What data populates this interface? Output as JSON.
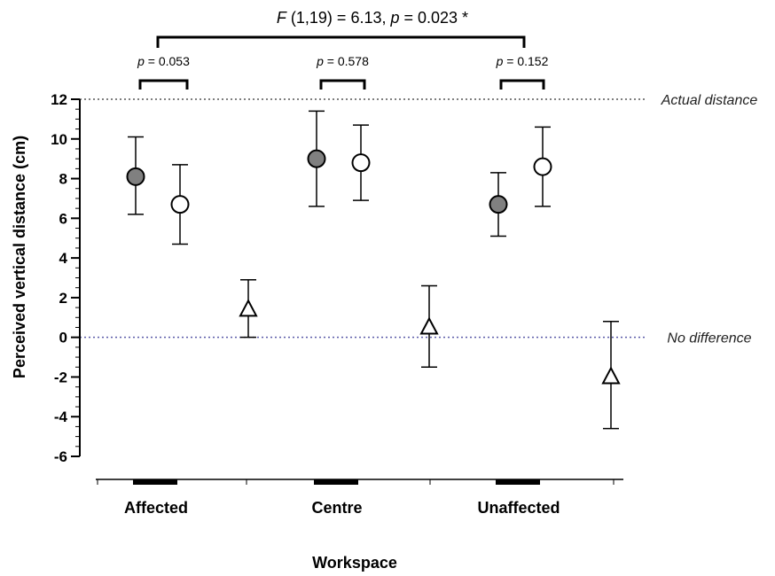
{
  "chart_data": {
    "type": "scatter",
    "xlabel": "Workspace",
    "ylabel": "Perceived vertical distance (cm)",
    "ylim": [
      -6,
      12
    ],
    "yticks": [
      "12",
      "10",
      "8",
      "6",
      "4",
      "2",
      "0",
      "-2",
      "-4",
      "-6"
    ],
    "categories": [
      "Affected",
      "Centre",
      "Unaffected"
    ],
    "series": [
      {
        "marker": "filled-circle",
        "color": "#808080",
        "values": [
          8.1,
          9.0,
          6.7
        ],
        "ci_lower": [
          6.2,
          6.6,
          5.1
        ],
        "ci_upper": [
          10.1,
          11.4,
          8.3
        ]
      },
      {
        "marker": "open-circle",
        "color": "#ffffff",
        "values": [
          6.7,
          8.8,
          8.6
        ],
        "ci_lower": [
          4.7,
          6.9,
          6.6
        ],
        "ci_upper": [
          8.7,
          10.7,
          10.6
        ]
      },
      {
        "marker": "open-triangle",
        "color": "#ffffff",
        "values": [
          1.4,
          0.5,
          -2.0
        ],
        "ci_lower": [
          0.0,
          -1.5,
          -4.6
        ],
        "ci_upper": [
          2.9,
          2.6,
          0.8
        ]
      }
    ],
    "reference_lines": [
      {
        "y": 12,
        "label": "Actual distance",
        "color": "#555555"
      },
      {
        "y": 0,
        "label": "No difference",
        "color": "#5a5aa8"
      }
    ],
    "annotations": {
      "overall": {
        "prefix": "F",
        "text": " (1,19) = 6.13, ",
        "p_symbol": "p",
        "p_text": " = 0.023 *"
      },
      "pairs": [
        {
          "p_symbol": "p",
          "text": " = 0.053"
        },
        {
          "p_symbol": "p",
          "text": " = 0.578"
        },
        {
          "p_symbol": "p",
          "text": " = 0.152"
        }
      ]
    },
    "grid": false
  }
}
